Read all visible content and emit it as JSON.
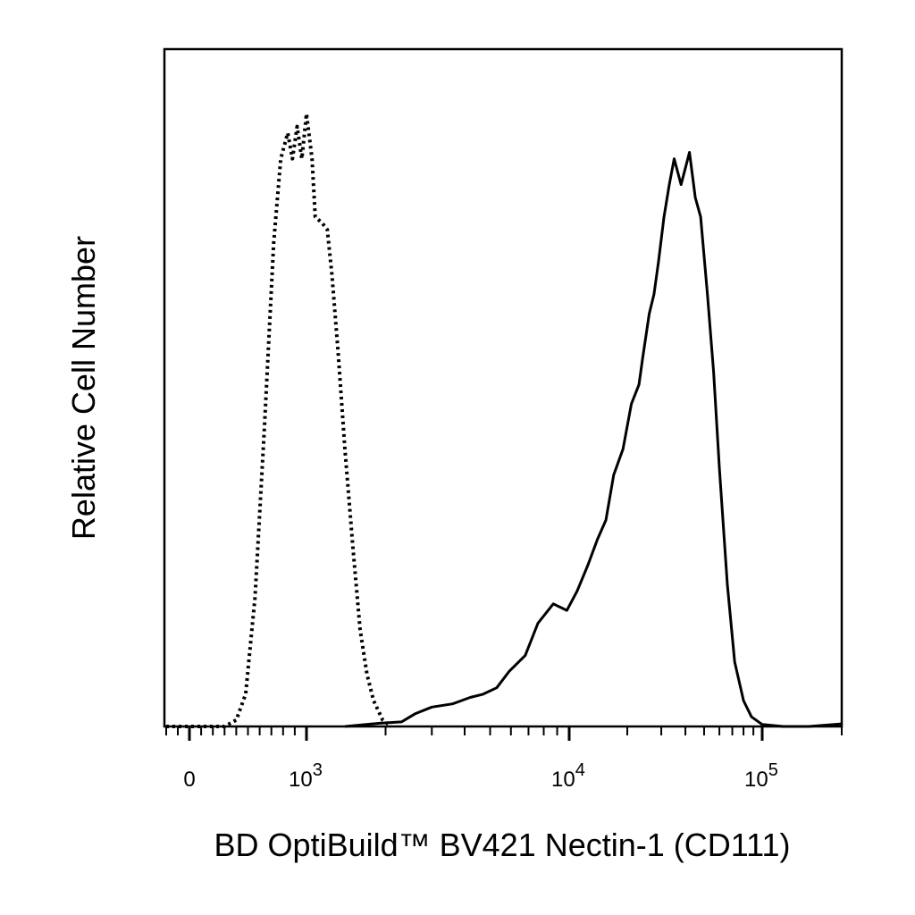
{
  "chart_data": {
    "type": "line",
    "x_scale": "biexponential",
    "ylabel": "Relative Cell Number",
    "xlabel": "BD OptiBuild™ BV421 Nectin-1 (CD111)",
    "x_ticks": [
      {
        "value": 0,
        "base": "0",
        "exp": ""
      },
      {
        "value": 1000,
        "base": "10",
        "exp": "3"
      },
      {
        "value": 10000,
        "base": "10",
        "exp": "4"
      },
      {
        "value": 100000,
        "base": "10",
        "exp": "5"
      }
    ],
    "xlim": [
      -200,
      200000
    ],
    "ylim": [
      0,
      1.05
    ],
    "grid": false,
    "series": [
      {
        "style": "dotted",
        "points": [
          [
            -200,
            0
          ],
          [
            300,
            0
          ],
          [
            400,
            0.01
          ],
          [
            480,
            0.05
          ],
          [
            560,
            0.2
          ],
          [
            640,
            0.46
          ],
          [
            720,
            0.75
          ],
          [
            780,
            0.88
          ],
          [
            840,
            0.92
          ],
          [
            880,
            0.88
          ],
          [
            920,
            0.93
          ],
          [
            960,
            0.88
          ],
          [
            1000,
            0.95
          ],
          [
            1050,
            0.88
          ],
          [
            1080,
            0.79
          ],
          [
            1150,
            0.78
          ],
          [
            1200,
            0.77
          ],
          [
            1250,
            0.7
          ],
          [
            1320,
            0.58
          ],
          [
            1400,
            0.43
          ],
          [
            1500,
            0.28
          ],
          [
            1600,
            0.15
          ],
          [
            1700,
            0.08
          ],
          [
            1800,
            0.04
          ],
          [
            1950,
            0.01
          ],
          [
            2100,
            0
          ]
        ]
      },
      {
        "style": "solid",
        "points": [
          [
            1400,
            0
          ],
          [
            1900,
            0.005
          ],
          [
            2300,
            0.007
          ],
          [
            2600,
            0.02
          ],
          [
            3000,
            0.03
          ],
          [
            3600,
            0.035
          ],
          [
            4200,
            0.045
          ],
          [
            4700,
            0.05
          ],
          [
            5300,
            0.06
          ],
          [
            5900,
            0.085
          ],
          [
            6800,
            0.11
          ],
          [
            7600,
            0.16
          ],
          [
            8700,
            0.19
          ],
          [
            9800,
            0.18
          ],
          [
            11000,
            0.21
          ],
          [
            12500,
            0.25
          ],
          [
            14000,
            0.29
          ],
          [
            15500,
            0.32
          ],
          [
            17000,
            0.39
          ],
          [
            19000,
            0.43
          ],
          [
            21000,
            0.5
          ],
          [
            23000,
            0.53
          ],
          [
            24000,
            0.57
          ],
          [
            26000,
            0.64
          ],
          [
            27500,
            0.67
          ],
          [
            29000,
            0.72
          ],
          [
            31000,
            0.79
          ],
          [
            33000,
            0.84
          ],
          [
            35000,
            0.88
          ],
          [
            38000,
            0.84
          ],
          [
            42000,
            0.89
          ],
          [
            45000,
            0.82
          ],
          [
            48000,
            0.79
          ],
          [
            52000,
            0.67
          ],
          [
            56000,
            0.55
          ],
          [
            60000,
            0.4
          ],
          [
            66000,
            0.22
          ],
          [
            72000,
            0.1
          ],
          [
            80000,
            0.04
          ],
          [
            88000,
            0.015
          ],
          [
            100000,
            0.003
          ],
          [
            120000,
            0
          ],
          [
            150000,
            0
          ],
          [
            200000,
            0.004
          ]
        ]
      }
    ]
  }
}
